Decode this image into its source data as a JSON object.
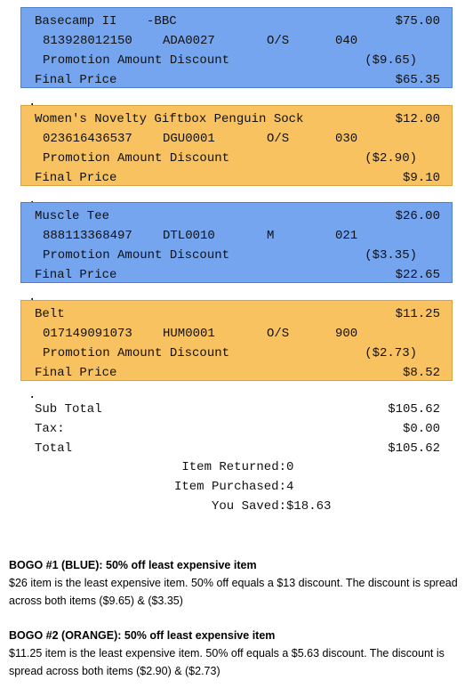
{
  "items": [
    {
      "name": "Basecamp II    -BBC",
      "price": "$75.00",
      "upc": "813928012150",
      "sku": "ADA0027",
      "size": "O/S",
      "dept": "040",
      "promo_label": "Promotion Amount Discount",
      "discount": "($9.65)",
      "final_label": "Final Price",
      "final_price": "$65.35",
      "color": "blue",
      "separator": "."
    },
    {
      "name": "Women's Novelty Giftbox Penguin Sock",
      "price": "$12.00",
      "upc": "023616436537",
      "sku": "DGU0001",
      "size": "O/S",
      "dept": "030",
      "promo_label": "Promotion Amount Discount",
      "discount": "($2.90)",
      "final_label": "Final Price",
      "final_price": "$9.10",
      "color": "orange",
      "separator": "."
    },
    {
      "name": "Muscle Tee",
      "price": "$26.00",
      "upc": "888113368497",
      "sku": "DTL0010",
      "size": "M",
      "dept": "021",
      "promo_label": "Promotion Amount Discount",
      "discount": "($3.35)",
      "final_label": "Final Price",
      "final_price": "$22.65",
      "color": "blue",
      "separator": "."
    },
    {
      "name": "Belt",
      "price": "$11.25",
      "upc": "017149091073",
      "sku": "HUM0001",
      "size": "O/S",
      "dept": "900",
      "promo_label": "Promotion Amount Discount",
      "discount": "($2.73)",
      "final_label": "Final Price",
      "final_price": "$8.52",
      "color": "orange",
      "separator": "."
    }
  ],
  "totals": [
    {
      "label": "Sub Total",
      "value": "$105.62"
    },
    {
      "label": "Tax:",
      "value": "$0.00"
    },
    {
      "label": "Total",
      "value": "$105.62"
    }
  ],
  "summary": [
    {
      "label": "Item Returned:",
      "value": "0"
    },
    {
      "label": "Item Purchased:",
      "value": "4"
    },
    {
      "label": "You Saved:",
      "value": "$18.63"
    }
  ],
  "notes": [
    {
      "heading": "BOGO #1 (BLUE): 50% off least expensive item",
      "text": "$26 item is the least expensive item. 50% off equals a $13 discount. The discount is spread across both items ($9.65) & ($3.35)"
    },
    {
      "heading": "BOGO #2 (ORANGE): 50% off least expensive item",
      "text": "$11.25 item is the least expensive item. 50% off equals a $5.63 discount. The discount is spread across both items ($2.90) & ($2.73)"
    }
  ]
}
